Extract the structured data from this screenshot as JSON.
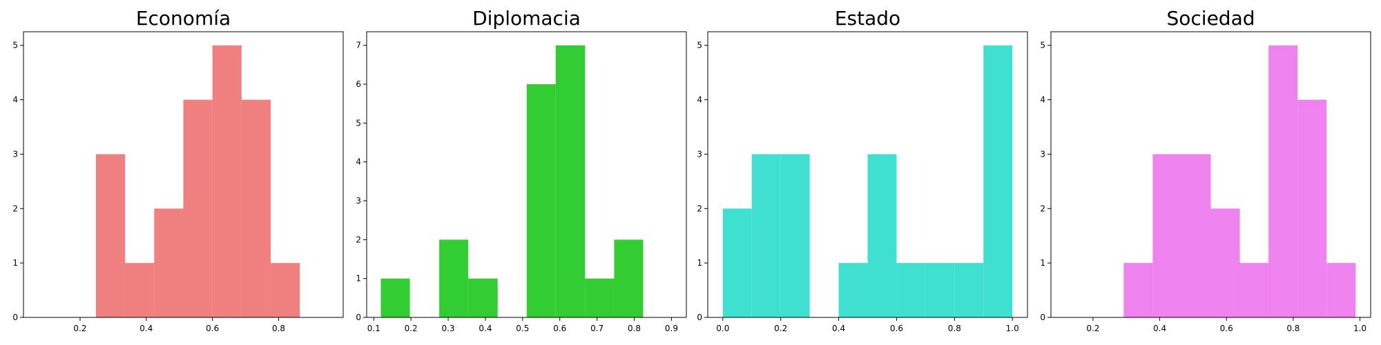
{
  "chart_data": [
    {
      "type": "histogram",
      "title": "Economía",
      "color": "#f08080",
      "bins": [
        0.248,
        0.336,
        0.424,
        0.512,
        0.6,
        0.688,
        0.776,
        0.864
      ],
      "counts": [
        3,
        1,
        2,
        4,
        5,
        4,
        1
      ],
      "xlim": [
        0.029,
        0.995
      ],
      "xticks": [
        0.2,
        0.4,
        0.6,
        0.8
      ],
      "ylim": [
        0,
        5.25
      ],
      "yticks": [
        0,
        1,
        2,
        3,
        4,
        5
      ]
    },
    {
      "type": "histogram",
      "title": "Diplomacia",
      "color": "#32cd32",
      "bins": [
        0.119,
        0.197,
        0.276,
        0.354,
        0.433,
        0.511,
        0.589,
        0.668,
        0.746,
        0.824
      ],
      "counts": [
        1,
        0,
        2,
        1,
        0,
        6,
        7,
        1,
        2
      ],
      "xlim": [
        0.081,
        0.94
      ],
      "xticks": [
        0.1,
        0.2,
        0.3,
        0.4,
        0.5,
        0.6,
        0.7,
        0.8,
        0.9
      ],
      "ylim": [
        0,
        7.35
      ],
      "yticks": [
        0,
        1,
        2,
        3,
        4,
        5,
        6,
        7
      ]
    },
    {
      "type": "histogram",
      "title": "Estado",
      "color": "#40e0d0",
      "bins": [
        0,
        0.1,
        0.2,
        0.3,
        0.4,
        0.5,
        0.6,
        0.7,
        0.8,
        0.9,
        1.0
      ],
      "counts": [
        2,
        3,
        3,
        0,
        1,
        3,
        1,
        1,
        1,
        5
      ],
      "xlim": [
        -0.052,
        1.052
      ],
      "xticks": [
        {
          "value": 0,
          "label": "0.0"
        },
        0.2,
        0.4,
        0.6,
        0.8,
        {
          "value": 1,
          "label": "1.0"
        }
      ],
      "ylim": [
        0,
        5.25
      ],
      "yticks": [
        0,
        1,
        2,
        3,
        4,
        5
      ]
    },
    {
      "type": "histogram",
      "title": "Sociedad",
      "color": "#ee82ee",
      "bins": [
        0.292,
        0.379,
        0.466,
        0.553,
        0.64,
        0.726,
        0.813,
        0.9,
        0.987
      ],
      "counts": [
        1,
        3,
        3,
        2,
        1,
        5,
        4,
        1
      ],
      "xlim": [
        0.074,
        1.032
      ],
      "xticks": [
        0.2,
        0.4,
        0.6,
        0.8,
        {
          "value": 1,
          "label": "1.0"
        }
      ],
      "ylim": [
        0,
        5.25
      ],
      "yticks": [
        0,
        1,
        2,
        3,
        4,
        5
      ]
    }
  ]
}
